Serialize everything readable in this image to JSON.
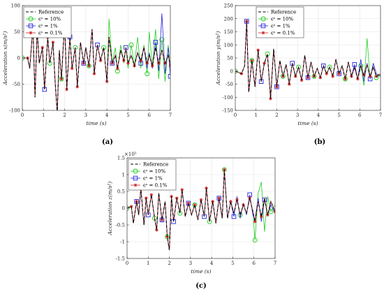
{
  "chart_data": [
    {
      "id": "a",
      "type": "line",
      "caption": "(a)",
      "xlabel": "time (s)",
      "ylabel": "Acceleration x(m/s²)",
      "xlim": [
        0,
        7
      ],
      "ylim": [
        -100,
        100
      ],
      "xticks": [
        0,
        1,
        2,
        3,
        4,
        5,
        6,
        7
      ],
      "yticks": [
        -100,
        -50,
        0,
        50,
        100
      ],
      "yexp": "",
      "legend_position": "top-left",
      "grid": true,
      "x": [
        0,
        0.25,
        0.35,
        0.5,
        0.6,
        0.7,
        0.8,
        0.95,
        1.05,
        1.2,
        1.3,
        1.45,
        1.55,
        1.65,
        1.75,
        1.85,
        2.0,
        2.1,
        2.25,
        2.35,
        2.5,
        2.6,
        2.75,
        2.9,
        3.0,
        3.15,
        3.3,
        3.4,
        3.55,
        3.7,
        3.85,
        4.0,
        4.1,
        4.25,
        4.4,
        4.5,
        4.65,
        4.8,
        4.9,
        5.0,
        5.15,
        5.3,
        5.45,
        5.6,
        5.75,
        5.9,
        6.0,
        6.15,
        6.3,
        6.45,
        6.6,
        6.75,
        6.9,
        7.0
      ],
      "series": [
        {
          "name": "Reference",
          "color": "#000000",
          "dash": "4,2.5",
          "marker": "none",
          "values": [
            0,
            0,
            -20,
            60,
            -75,
            55,
            -10,
            20,
            -60,
            40,
            -10,
            30,
            -45,
            -105,
            15,
            -40,
            70,
            -60,
            40,
            -20,
            20,
            -55,
            30,
            -10,
            20,
            -15,
            55,
            -30,
            25,
            -5,
            20,
            -45,
            40,
            -10,
            5,
            -20,
            15,
            -5,
            20,
            -10,
            5,
            -15,
            10,
            -5,
            20,
            -10,
            5,
            -15,
            20,
            -10,
            15,
            -10,
            5,
            -15
          ]
        },
        {
          "name": "ϵˢ = 10%",
          "color": "#22cc22",
          "dash": "",
          "marker": "circle",
          "values": [
            0,
            0,
            -20,
            60,
            -75,
            55,
            -10,
            20,
            -60,
            40,
            -10,
            30,
            -45,
            -105,
            15,
            -40,
            70,
            -60,
            40,
            -20,
            20,
            -55,
            30,
            -10,
            20,
            -15,
            55,
            -30,
            25,
            -5,
            20,
            -45,
            75,
            -10,
            20,
            -25,
            25,
            -10,
            20,
            -20,
            25,
            -15,
            40,
            -20,
            25,
            -30,
            50,
            -15,
            55,
            -40,
            35,
            -45,
            25,
            -20
          ]
        },
        {
          "name": "ϵˢ = 1%",
          "color": "#2222dd",
          "dash": "",
          "marker": "square",
          "values": [
            0,
            0,
            -20,
            60,
            -75,
            55,
            -10,
            20,
            -60,
            40,
            -10,
            30,
            -45,
            -105,
            15,
            -40,
            70,
            -60,
            40,
            -20,
            20,
            -55,
            30,
            -10,
            20,
            -15,
            55,
            -30,
            25,
            -5,
            20,
            -45,
            40,
            -10,
            5,
            -20,
            15,
            -5,
            20,
            -10,
            5,
            -15,
            10,
            -10,
            20,
            -20,
            10,
            -20,
            30,
            -25,
            85,
            -30,
            20,
            -35
          ]
        },
        {
          "name": "ϵˢ = 0.1%",
          "color": "#cc2222",
          "dash": "",
          "marker": "star",
          "values": [
            0,
            0,
            -20,
            60,
            -75,
            55,
            -10,
            20,
            -60,
            40,
            -10,
            30,
            -45,
            -105,
            15,
            -40,
            70,
            -60,
            40,
            -20,
            20,
            -55,
            30,
            -10,
            20,
            -15,
            55,
            -30,
            25,
            -5,
            20,
            -45,
            40,
            -10,
            5,
            -20,
            15,
            -5,
            20,
            -10,
            5,
            -15,
            10,
            -5,
            20,
            -10,
            5,
            -15,
            20,
            -10,
            15,
            -10,
            5,
            -15
          ]
        }
      ]
    },
    {
      "id": "b",
      "type": "line",
      "caption": "(b)",
      "xlabel": "time (s)",
      "ylabel": "Acceleration y(m/s²)",
      "xlim": [
        0,
        7
      ],
      "ylim": [
        -150,
        250
      ],
      "xticks": [
        0,
        1,
        2,
        3,
        4,
        5,
        6,
        7
      ],
      "yticks": [
        -150,
        -100,
        -50,
        0,
        50,
        100,
        150,
        200,
        250
      ],
      "yexp": "",
      "legend_position": "top-right",
      "grid": true,
      "x": [
        0,
        0.3,
        0.45,
        0.55,
        0.65,
        0.8,
        0.95,
        1.1,
        1.25,
        1.4,
        1.55,
        1.7,
        1.85,
        2.0,
        2.15,
        2.3,
        2.45,
        2.6,
        2.75,
        2.9,
        3.05,
        3.2,
        3.35,
        3.5,
        3.65,
        3.8,
        3.95,
        4.1,
        4.25,
        4.4,
        4.55,
        4.7,
        4.85,
        5.0,
        5.15,
        5.3,
        5.45,
        5.6,
        5.75,
        5.9,
        6.05,
        6.2,
        6.35,
        6.5,
        6.65,
        6.8,
        7.0
      ],
      "series": [
        {
          "name": "Reference",
          "color": "#000000",
          "dash": "4,2.5",
          "marker": "none",
          "values": [
            0,
            -10,
            20,
            190,
            -80,
            40,
            -60,
            80,
            -40,
            30,
            65,
            -105,
            85,
            -60,
            40,
            -20,
            25,
            -50,
            30,
            -20,
            15,
            -35,
            60,
            -25,
            35,
            -20,
            10,
            -25,
            20,
            -10,
            15,
            -20,
            45,
            -10,
            20,
            -30,
            35,
            -20,
            15,
            -30,
            20,
            -15,
            25,
            -20,
            15,
            -20,
            -10
          ]
        },
        {
          "name": "ϵˢ = 10%",
          "color": "#22cc22",
          "dash": "",
          "marker": "circle",
          "values": [
            0,
            -10,
            20,
            190,
            -80,
            40,
            -60,
            80,
            -40,
            30,
            65,
            -105,
            85,
            -60,
            40,
            -20,
            25,
            -50,
            30,
            -20,
            15,
            -35,
            60,
            -25,
            35,
            -20,
            10,
            -25,
            20,
            -10,
            15,
            -20,
            45,
            -10,
            20,
            -30,
            35,
            -20,
            15,
            -30,
            20,
            -55,
            125,
            -30,
            20,
            -25,
            -15
          ]
        },
        {
          "name": "ϵˢ = 1%",
          "color": "#2222dd",
          "dash": "",
          "marker": "square",
          "values": [
            0,
            -10,
            20,
            190,
            -80,
            40,
            -60,
            80,
            -40,
            30,
            65,
            -105,
            85,
            -60,
            40,
            -20,
            25,
            -50,
            30,
            -20,
            15,
            -35,
            60,
            -25,
            35,
            -20,
            10,
            -25,
            20,
            -10,
            15,
            -20,
            45,
            -10,
            20,
            -30,
            35,
            -20,
            25,
            -30,
            45,
            -40,
            30,
            -30,
            30,
            -10,
            -20
          ]
        },
        {
          "name": "ϵˢ = 0.1%",
          "color": "#cc2222",
          "dash": "",
          "marker": "star",
          "values": [
            0,
            -10,
            20,
            190,
            -80,
            40,
            -60,
            80,
            -40,
            30,
            65,
            -105,
            85,
            -60,
            40,
            -20,
            25,
            -50,
            30,
            -20,
            15,
            -35,
            60,
            -25,
            35,
            -20,
            10,
            -25,
            20,
            -10,
            15,
            -20,
            45,
            -10,
            20,
            -30,
            35,
            -20,
            15,
            -30,
            20,
            -15,
            25,
            -20,
            15,
            -20,
            -10
          ]
        }
      ]
    },
    {
      "id": "c",
      "type": "line",
      "caption": "(c)",
      "xlabel": "time (s)",
      "ylabel": "Acceleration z(m/s²)",
      "xlim": [
        0,
        7
      ],
      "ylim": [
        -1.5,
        1.5
      ],
      "xticks": [
        0,
        1,
        2,
        3,
        4,
        5,
        6,
        7
      ],
      "yticks": [
        -1.5,
        -1,
        -0.5,
        0,
        0.5,
        1,
        1.5
      ],
      "yexp": "×10⁵",
      "legend_position": "top-left",
      "grid": true,
      "x": [
        0,
        0.2,
        0.3,
        0.45,
        0.55,
        0.65,
        0.8,
        0.9,
        1.0,
        1.15,
        1.3,
        1.4,
        1.5,
        1.65,
        1.8,
        1.9,
        2.0,
        2.1,
        2.2,
        2.35,
        2.5,
        2.6,
        2.75,
        2.9,
        3.05,
        3.2,
        3.35,
        3.5,
        3.65,
        3.75,
        3.9,
        4.05,
        4.2,
        4.35,
        4.5,
        4.6,
        4.75,
        4.9,
        5.05,
        5.2,
        5.35,
        5.5,
        5.65,
        5.8,
        5.95,
        6.05,
        6.2,
        6.35,
        6.5,
        6.65,
        6.8,
        7.0
      ],
      "series": [
        {
          "name": "Reference",
          "color": "#000000",
          "dash": "4,2.5",
          "marker": "none",
          "values": [
            0,
            0.05,
            -0.45,
            0.2,
            -0.2,
            0.6,
            -0.5,
            0.3,
            -0.2,
            0.4,
            -0.3,
            -0.65,
            0.45,
            -0.35,
            0.2,
            -0.85,
            -1.25,
            0.35,
            -0.4,
            0.3,
            -0.15,
            0.55,
            -0.25,
            0.15,
            -0.2,
            0.1,
            -0.35,
            0.25,
            -0.25,
            0.6,
            -0.4,
            0.2,
            -0.45,
            0.3,
            -0.3,
            1.15,
            -0.3,
            0.2,
            -0.15,
            0.25,
            -0.2,
            0.1,
            -0.15,
            0.3,
            -0.1,
            -0.4,
            0.2,
            -0.25,
            0.3,
            -0.2,
            0.2,
            -0.1
          ]
        },
        {
          "name": "ϵˢ = 10%",
          "color": "#22cc22",
          "dash": "",
          "marker": "circle",
          "values": [
            0,
            0.05,
            -0.45,
            0.2,
            -0.2,
            0.6,
            -0.5,
            0.3,
            -0.2,
            0.4,
            -0.3,
            -0.65,
            0.45,
            -0.35,
            0.2,
            -0.85,
            -1.25,
            0.35,
            -0.4,
            0.3,
            -0.15,
            0.55,
            -0.25,
            0.15,
            -0.2,
            0.1,
            -0.35,
            0.25,
            -0.25,
            0.6,
            -0.4,
            0.2,
            -0.45,
            0.3,
            -0.3,
            1.15,
            -0.3,
            0.2,
            -0.15,
            0.25,
            -0.2,
            0.1,
            -0.15,
            0.3,
            -0.1,
            -0.95,
            0.45,
            0.78,
            -0.7,
            0.35,
            -0.1,
            0.1
          ]
        },
        {
          "name": "ϵˢ = 1%",
          "color": "#2222dd",
          "dash": "",
          "marker": "square",
          "values": [
            0,
            0.05,
            -0.45,
            0.2,
            -0.2,
            0.6,
            -0.5,
            0.3,
            -0.2,
            0.4,
            -0.3,
            -0.65,
            0.45,
            -0.35,
            0.2,
            -0.85,
            -1.25,
            0.35,
            -0.4,
            0.3,
            -0.15,
            0.55,
            -0.25,
            0.15,
            -0.2,
            0.1,
            -0.35,
            0.25,
            -0.25,
            0.6,
            -0.4,
            0.2,
            -0.45,
            0.3,
            -0.3,
            1.15,
            -0.3,
            0.2,
            -0.25,
            0.35,
            -0.3,
            0.15,
            -0.2,
            0.4,
            -0.2,
            -0.35,
            0.3,
            -0.4,
            0.25,
            -0.2,
            0.1,
            -0.15
          ]
        },
        {
          "name": "ϵˢ = 0.1%",
          "color": "#cc2222",
          "dash": "",
          "marker": "star",
          "values": [
            0,
            0.05,
            -0.45,
            0.2,
            -0.2,
            0.6,
            -0.5,
            0.3,
            -0.2,
            0.4,
            -0.3,
            -0.65,
            0.45,
            -0.35,
            0.2,
            -0.85,
            -1.25,
            0.35,
            -0.4,
            0.3,
            -0.15,
            0.55,
            -0.25,
            0.15,
            -0.2,
            0.1,
            -0.35,
            0.25,
            -0.25,
            0.6,
            -0.4,
            0.2,
            -0.45,
            0.3,
            -0.3,
            1.15,
            -0.3,
            0.2,
            -0.15,
            0.25,
            -0.2,
            0.1,
            -0.15,
            0.3,
            -0.1,
            -0.4,
            0.2,
            -0.25,
            0.3,
            -0.2,
            0.2,
            -0.1
          ]
        }
      ]
    }
  ]
}
